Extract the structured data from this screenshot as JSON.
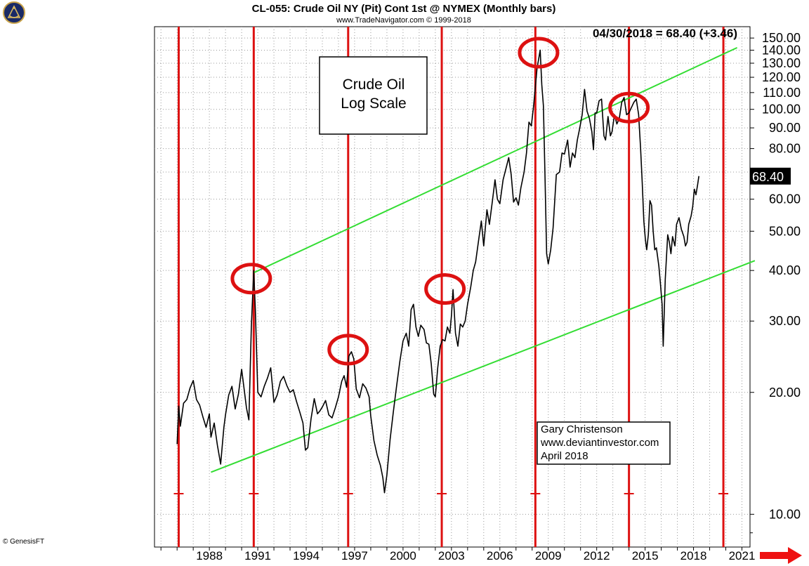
{
  "chart_data": {
    "type": "line",
    "title": "CL-055:  Crude Oil NY (Pit) Cont 1st @ NYMEX  (Monthly bars)",
    "subtitle": "www.TradeNavigator.com © 1999-2018",
    "readout": "04/30/2018 = 68.40 (+3.46)",
    "last_value_label": "68.40",
    "yscale": "log",
    "ylim": [
      8.3,
      160
    ],
    "xlim": [
      1984.6,
      2021.5
    ],
    "y_ticks": [
      10,
      20,
      30,
      40,
      50,
      60,
      70,
      80,
      90,
      100,
      110,
      120,
      130,
      140,
      150
    ],
    "y_tick_labels": [
      "10.00",
      "20.00",
      "30.00",
      "40.00",
      "50.00",
      "60.00",
      "",
      "80.00",
      "90.00",
      "100.00",
      "110.00",
      "120.00",
      "130.00",
      "140.00",
      "150.00"
    ],
    "x_ticks": [
      1988,
      1991,
      1994,
      1997,
      2000,
      2003,
      2006,
      2009,
      2012,
      2015,
      2018,
      2021
    ],
    "x_tick_labels": [
      "1988",
      "1991",
      "1994",
      "1997",
      "2000",
      "2003",
      "2006",
      "2009",
      "2012",
      "2015",
      "2018",
      "2021"
    ],
    "grid": true,
    "series": [
      {
        "color": "#000000",
        "points": [
          [
            1986.0,
            14.9
          ],
          [
            1986.1,
            18.5
          ],
          [
            1986.2,
            16.5
          ],
          [
            1986.4,
            18.8
          ],
          [
            1986.6,
            19.2
          ],
          [
            1986.8,
            20.5
          ],
          [
            1987.0,
            21.4
          ],
          [
            1987.2,
            19.2
          ],
          [
            1987.4,
            18.6
          ],
          [
            1987.6,
            17.4
          ],
          [
            1987.8,
            16.4
          ],
          [
            1988.0,
            17.7
          ],
          [
            1988.1,
            15.5
          ],
          [
            1988.3,
            16.8
          ],
          [
            1988.5,
            14.8
          ],
          [
            1988.7,
            13.3
          ],
          [
            1988.9,
            16.4
          ],
          [
            1989.0,
            17.6
          ],
          [
            1989.2,
            19.7
          ],
          [
            1989.4,
            20.7
          ],
          [
            1989.6,
            18.2
          ],
          [
            1989.8,
            19.8
          ],
          [
            1990.0,
            22.8
          ],
          [
            1990.3,
            18.3
          ],
          [
            1990.45,
            17.1
          ],
          [
            1990.6,
            29.0
          ],
          [
            1990.75,
            40.0
          ],
          [
            1990.85,
            32.0
          ],
          [
            1991.0,
            20.0
          ],
          [
            1991.2,
            19.5
          ],
          [
            1991.4,
            20.7
          ],
          [
            1991.6,
            21.7
          ],
          [
            1991.8,
            23.0
          ],
          [
            1992.0,
            18.9
          ],
          [
            1992.2,
            19.7
          ],
          [
            1992.4,
            21.3
          ],
          [
            1992.6,
            21.9
          ],
          [
            1992.8,
            20.8
          ],
          [
            1993.0,
            20.0
          ],
          [
            1993.2,
            20.3
          ],
          [
            1993.4,
            19.0
          ],
          [
            1993.6,
            17.9
          ],
          [
            1993.8,
            16.8
          ],
          [
            1993.95,
            14.4
          ],
          [
            1994.1,
            14.6
          ],
          [
            1994.3,
            17.2
          ],
          [
            1994.5,
            19.3
          ],
          [
            1994.7,
            17.7
          ],
          [
            1994.85,
            18.0
          ],
          [
            1995.0,
            18.4
          ],
          [
            1995.2,
            19.1
          ],
          [
            1995.4,
            17.6
          ],
          [
            1995.6,
            17.3
          ],
          [
            1995.8,
            18.3
          ],
          [
            1996.0,
            19.5
          ],
          [
            1996.2,
            21.3
          ],
          [
            1996.35,
            22.0
          ],
          [
            1996.5,
            20.6
          ],
          [
            1996.65,
            24.6
          ],
          [
            1996.8,
            25.2
          ],
          [
            1996.95,
            24.2
          ],
          [
            1997.1,
            20.4
          ],
          [
            1997.3,
            19.4
          ],
          [
            1997.5,
            21.0
          ],
          [
            1997.7,
            20.5
          ],
          [
            1997.9,
            19.5
          ],
          [
            1998.0,
            17.5
          ],
          [
            1998.2,
            15.2
          ],
          [
            1998.4,
            14.0
          ],
          [
            1998.6,
            13.2
          ],
          [
            1998.75,
            12.3
          ],
          [
            1998.85,
            11.3
          ],
          [
            1999.0,
            12.5
          ],
          [
            1999.2,
            15.3
          ],
          [
            1999.4,
            17.9
          ],
          [
            1999.6,
            20.7
          ],
          [
            1999.8,
            23.8
          ],
          [
            2000.0,
            26.8
          ],
          [
            2000.2,
            28.0
          ],
          [
            2000.35,
            26.0
          ],
          [
            2000.5,
            32.0
          ],
          [
            2000.65,
            33.0
          ],
          [
            2000.8,
            29.0
          ],
          [
            2000.95,
            27.5
          ],
          [
            2001.1,
            29.3
          ],
          [
            2001.3,
            28.6
          ],
          [
            2001.45,
            26.5
          ],
          [
            2001.6,
            26.3
          ],
          [
            2001.75,
            23.5
          ],
          [
            2001.9,
            19.8
          ],
          [
            2002.0,
            19.5
          ],
          [
            2002.15,
            23.0
          ],
          [
            2002.3,
            26.0
          ],
          [
            2002.45,
            27.0
          ],
          [
            2002.6,
            26.8
          ],
          [
            2002.75,
            29.0
          ],
          [
            2002.9,
            28.0
          ],
          [
            2003.0,
            31.0
          ],
          [
            2003.1,
            35.9
          ],
          [
            2003.25,
            28.0
          ],
          [
            2003.4,
            26.0
          ],
          [
            2003.55,
            29.5
          ],
          [
            2003.7,
            29.0
          ],
          [
            2003.85,
            30.0
          ],
          [
            2004.0,
            33.0
          ],
          [
            2004.2,
            36.5
          ],
          [
            2004.35,
            40.0
          ],
          [
            2004.5,
            42.0
          ],
          [
            2004.7,
            48.0
          ],
          [
            2004.85,
            53.0
          ],
          [
            2005.0,
            46.0
          ],
          [
            2005.2,
            56.5
          ],
          [
            2005.35,
            52.0
          ],
          [
            2005.55,
            60.0
          ],
          [
            2005.7,
            67.0
          ],
          [
            2005.85,
            60.0
          ],
          [
            2006.0,
            58.5
          ],
          [
            2006.2,
            67.0
          ],
          [
            2006.4,
            72.0
          ],
          [
            2006.55,
            76.0
          ],
          [
            2006.7,
            69.0
          ],
          [
            2006.85,
            59.0
          ],
          [
            2007.0,
            60.5
          ],
          [
            2007.15,
            58.0
          ],
          [
            2007.3,
            64.0
          ],
          [
            2007.5,
            70.0
          ],
          [
            2007.65,
            78.0
          ],
          [
            2007.8,
            93.0
          ],
          [
            2007.95,
            91.0
          ],
          [
            2008.1,
            103.0
          ],
          [
            2008.3,
            126.0
          ],
          [
            2008.5,
            140.0
          ],
          [
            2008.6,
            115.0
          ],
          [
            2008.7,
            102.0
          ],
          [
            2008.8,
            68.0
          ],
          [
            2008.9,
            44.0
          ],
          [
            2009.0,
            41.5
          ],
          [
            2009.15,
            45.0
          ],
          [
            2009.3,
            51.0
          ],
          [
            2009.5,
            69.0
          ],
          [
            2009.7,
            70.0
          ],
          [
            2009.85,
            78.0
          ],
          [
            2010.0,
            77.5
          ],
          [
            2010.2,
            84.0
          ],
          [
            2010.35,
            72.0
          ],
          [
            2010.5,
            78.0
          ],
          [
            2010.65,
            76.0
          ],
          [
            2010.8,
            84.0
          ],
          [
            2010.95,
            90.0
          ],
          [
            2011.1,
            97.0
          ],
          [
            2011.25,
            112.0
          ],
          [
            2011.4,
            99.0
          ],
          [
            2011.55,
            95.0
          ],
          [
            2011.7,
            88.0
          ],
          [
            2011.8,
            79.5
          ],
          [
            2011.9,
            98.0
          ],
          [
            2012.0,
            98.0
          ],
          [
            2012.15,
            105.0
          ],
          [
            2012.3,
            106.0
          ],
          [
            2012.45,
            86.0
          ],
          [
            2012.55,
            84.0
          ],
          [
            2012.7,
            96.0
          ],
          [
            2012.85,
            86.0
          ],
          [
            2012.95,
            88.0
          ],
          [
            2013.1,
            97.0
          ],
          [
            2013.25,
            92.0
          ],
          [
            2013.4,
            95.0
          ],
          [
            2013.55,
            104.0
          ],
          [
            2013.7,
            107.0
          ],
          [
            2013.85,
            97.0
          ],
          [
            2014.0,
            98.0
          ],
          [
            2014.15,
            101.0
          ],
          [
            2014.3,
            104.0
          ],
          [
            2014.45,
            106.0
          ],
          [
            2014.6,
            97.0
          ],
          [
            2014.72,
            80.0
          ],
          [
            2014.82,
            66.0
          ],
          [
            2014.92,
            53.0
          ],
          [
            2015.02,
            47.5
          ],
          [
            2015.1,
            45.0
          ],
          [
            2015.2,
            49.0
          ],
          [
            2015.3,
            59.5
          ],
          [
            2015.4,
            58.0
          ],
          [
            2015.5,
            50.0
          ],
          [
            2015.6,
            45.0
          ],
          [
            2015.7,
            45.5
          ],
          [
            2015.85,
            41.0
          ],
          [
            2015.95,
            37.0
          ],
          [
            2016.05,
            33.0
          ],
          [
            2016.12,
            26.0
          ],
          [
            2016.25,
            38.0
          ],
          [
            2016.4,
            49.0
          ],
          [
            2016.5,
            47.0
          ],
          [
            2016.6,
            44.0
          ],
          [
            2016.7,
            48.5
          ],
          [
            2016.85,
            46.0
          ],
          [
            2016.95,
            52.0
          ],
          [
            2017.1,
            54.0
          ],
          [
            2017.25,
            50.5
          ],
          [
            2017.4,
            48.5
          ],
          [
            2017.5,
            46.0
          ],
          [
            2017.6,
            47.0
          ],
          [
            2017.7,
            52.0
          ],
          [
            2017.85,
            54.5
          ],
          [
            2017.95,
            57.5
          ],
          [
            2018.05,
            63.5
          ],
          [
            2018.15,
            61.5
          ],
          [
            2018.25,
            65.0
          ],
          [
            2018.33,
            68.4
          ]
        ]
      }
    ],
    "channel_lines": [
      {
        "color": "#33dd33",
        "points": [
          [
            1990.75,
            39.5
          ],
          [
            2020.7,
            142.0
          ]
        ]
      },
      {
        "color": "#33dd33",
        "points": [
          [
            1988.1,
            12.7
          ],
          [
            2021.8,
            42.3
          ]
        ]
      }
    ],
    "cycle_lines": {
      "color": "#dd1111",
      "x": [
        1986.1,
        1990.75,
        1996.6,
        2002.4,
        2008.2,
        2014.0,
        2019.85
      ]
    },
    "circles": [
      {
        "x": 1990.6,
        "y": 38.2,
        "color": "#dd1111"
      },
      {
        "x": 1996.6,
        "y": 25.5,
        "color": "#dd1111"
      },
      {
        "x": 2002.6,
        "y": 36.0,
        "color": "#dd1111"
      },
      {
        "x": 2008.4,
        "y": 138.0,
        "color": "#dd1111"
      },
      {
        "x": 2014.0,
        "y": 101.0,
        "color": "#dd1111"
      }
    ],
    "annotations": {
      "box_lines": [
        "Crude Oil",
        "Log Scale"
      ],
      "credit_lines": [
        "Gary Christenson",
        "www.deviantinvestor.com",
        "April 2018"
      ],
      "footer": "© GenesisFT"
    }
  },
  "colors": {
    "price": "#000000",
    "channel": "#33dd33",
    "cycle": "#dd1111",
    "grid": "#999999",
    "arrow": "#ee1111"
  },
  "icons": {
    "logo": "sextant-logo-icon",
    "arrow": "arrow-right-icon"
  }
}
